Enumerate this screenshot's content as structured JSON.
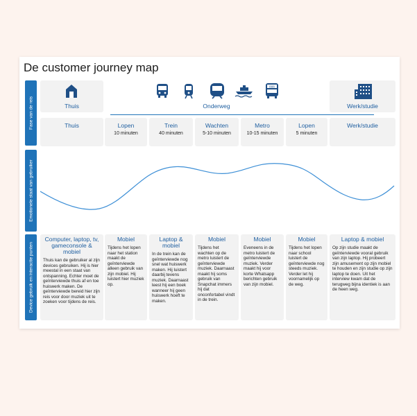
{
  "title": "De customer journey map",
  "rows": {
    "fase": "Fase van de reis",
    "emotie": "Emotionele staat van gebruiker",
    "device": "Device gebruik en interactie punten"
  },
  "phases": {
    "thuis": "Thuis",
    "onderweg": "Onderweg",
    "werk": "Werk/studie"
  },
  "icons": [
    "house-icon",
    "bus-icon",
    "train-icon",
    "metro-icon",
    "ferry-icon",
    "bus-808-icon",
    "office-building-icon"
  ],
  "bus_number": "808",
  "steps": [
    {
      "name": "Thuis",
      "duration": ""
    },
    {
      "name": "Lopen",
      "duration": "10 minuten"
    },
    {
      "name": "Trein",
      "duration": "40 minuten"
    },
    {
      "name": "Wachten",
      "duration": "5-10 minuten"
    },
    {
      "name": "Metro",
      "duration": "10-15 minuten"
    },
    {
      "name": "Lopen",
      "duration": "5 minuten"
    },
    {
      "name": "Werk/studie",
      "duration": ""
    }
  ],
  "devices": [
    {
      "device": "Computer, laptop, tv, gameconsole & mobiel",
      "text": "Thuis kan de gebruiker al zijn devices gebruiken. Hij is hier meestal in een staat van ontspanning. Echter moet de geïnterviewde thuis af en toe huiswerk maken. De geïnterviewde bereid hier zijn reis voor door muziek uit te zoeken voor tijdens de reis."
    },
    {
      "device": "Mobiel",
      "text": "Tijdens het lopen naar het station maakt de geïnterviewde alleen gebruik van zijn mobiel. Hij luistert hier muziek op."
    },
    {
      "device": "Laptop & mobiel",
      "text": "In de trein kan de geïnterviewde nog snel wat huiswerk maken. Hij luistert daarbij tevens muziek. Daarnaast leest hij een boek wanneer hij geen huiswerk hoeft te maken."
    },
    {
      "device": "Mobiel",
      "text": "Tijdens het wachten op de metro luistert de geïnterviewde muziek. Daarnaast maakt hij soms gebruik van Snapchat immers hij dat onconfortabel vindt in de trein."
    },
    {
      "device": "Mobiel",
      "text": "Eveneens in de metro luistert de geïnterviewde muziek. Verder maakt hij voor korte Whatsapp berichten gebruik van zijn mobiel."
    },
    {
      "device": "Mobiel",
      "text": "Tijdens het lopen naar school luistert de geïnterviewde nog steeds muziek. Verder let hij voornamelijk op de weg."
    },
    {
      "device": "Laptop & mobiel",
      "text": "Op zijn studie maakt de geïnterviewde vooral gebruik van zijn laptop. Hij probeert zijn amusement op zijn mobiel te houden en zijn studie op zijn laptop te doen. Uit het interview kwam dat de terugweg bijna identiek is aan de heen weg."
    }
  ],
  "colors": {
    "accent": "#1f73b8",
    "panel": "#f2f2f2",
    "icon": "#1f4f86"
  }
}
